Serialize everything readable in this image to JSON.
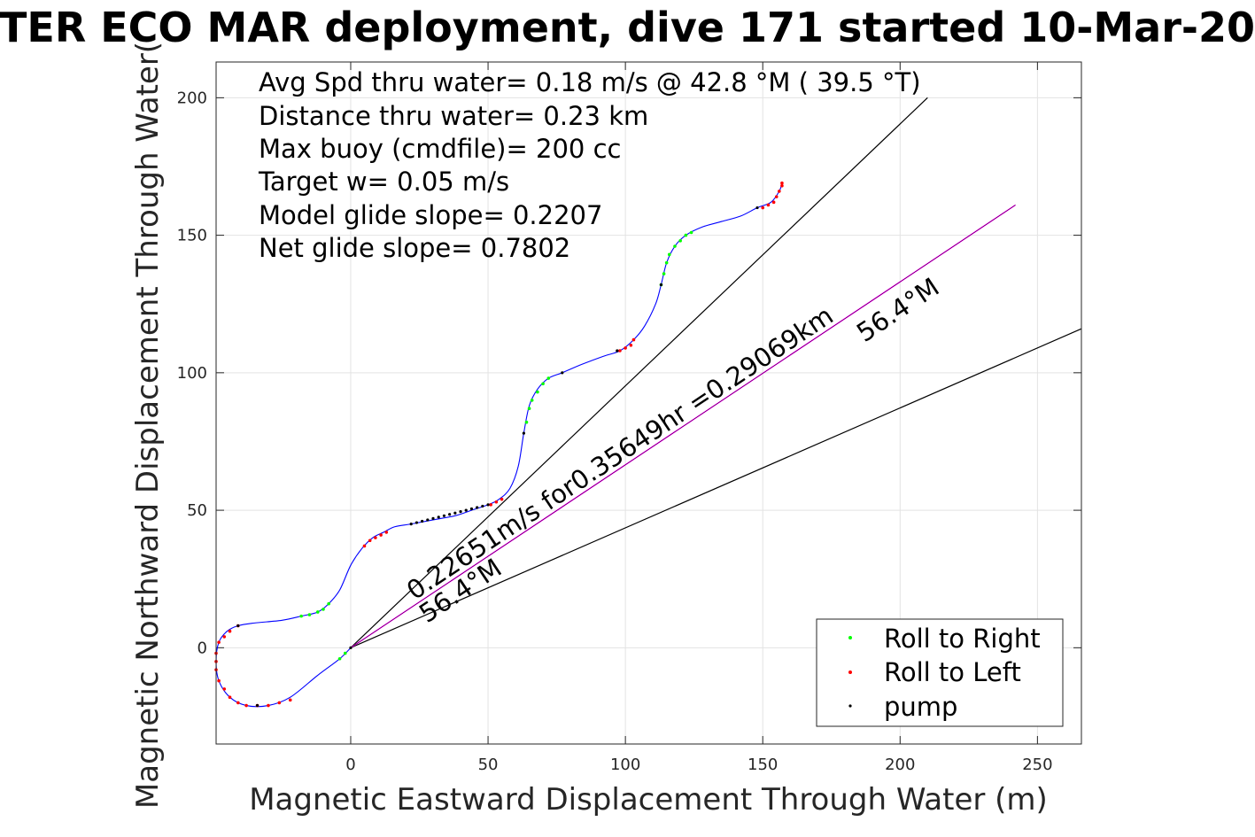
{
  "chart_data": {
    "type": "line",
    "title": "TER ECO MAR deployment, dive 171 started 10-Mar-20",
    "xlabel": "Magnetic Eastward Displacement Through Water (m)",
    "ylabel": "Magnetic Northward Displacement Through Water(",
    "xlim": [
      -49,
      266
    ],
    "ylim": [
      -35,
      213
    ],
    "xticks": [
      0,
      50,
      100,
      150,
      200,
      250
    ],
    "yticks": [
      0,
      50,
      100,
      150,
      200
    ],
    "grid": true,
    "legend_position": "bottom-right",
    "colors": {
      "track": "#0000ff",
      "roll_right": "#00ff00",
      "roll_left": "#ff0000",
      "pump": "#000000",
      "current_line": "#ff00ff",
      "reference_lines": "#000000"
    },
    "stats_lines": [
      "Avg Spd thru water=  0.18 m/s @  42.8 °M ( 39.5 °T)",
      "Distance thru water=  0.23 km",
      "Max buoy (cmdfile)= 200 cc",
      "Target w= 0.05 m/s",
      "Model glide slope= 0.2207",
      "Net glide slope= 0.7802"
    ],
    "current_label": "0.22651m/s for0.35649hr =0.29069km",
    "heading_label_1": "56.4°M",
    "heading_label_2": "56.4°M",
    "legend": [
      {
        "name": "Roll to Right",
        "color": "#00ff00"
      },
      {
        "name": "Roll to Left",
        "color": "#ff0000"
      },
      {
        "name": "pump",
        "color": "#000000"
      }
    ],
    "track": [
      [
        0,
        0
      ],
      [
        -4,
        -4
      ],
      [
        -12,
        -10
      ],
      [
        -22,
        -18
      ],
      [
        -30,
        -21
      ],
      [
        -38,
        -21
      ],
      [
        -44,
        -18
      ],
      [
        -48,
        -12
      ],
      [
        -49,
        -5
      ],
      [
        -48,
        2
      ],
      [
        -45,
        6
      ],
      [
        -41,
        8
      ],
      [
        -35,
        9
      ],
      [
        -25,
        10
      ],
      [
        -18,
        11.5
      ],
      [
        -12,
        13
      ],
      [
        -8,
        16
      ],
      [
        -4,
        21
      ],
      [
        0,
        30
      ],
      [
        4,
        36
      ],
      [
        8,
        40
      ],
      [
        12,
        42
      ],
      [
        16,
        44
      ],
      [
        22,
        45
      ],
      [
        30,
        46.5
      ],
      [
        38,
        48
      ],
      [
        44,
        50
      ],
      [
        50,
        52
      ],
      [
        54,
        54
      ],
      [
        58,
        58
      ],
      [
        61,
        66
      ],
      [
        63,
        78
      ],
      [
        65,
        88
      ],
      [
        68,
        94
      ],
      [
        72,
        98
      ],
      [
        77,
        100
      ],
      [
        84,
        103
      ],
      [
        92,
        106
      ],
      [
        98,
        108
      ],
      [
        103,
        112
      ],
      [
        107,
        117
      ],
      [
        111,
        125
      ],
      [
        113,
        132
      ],
      [
        115,
        140
      ],
      [
        118,
        146
      ],
      [
        122,
        150
      ],
      [
        128,
        153
      ],
      [
        135,
        155
      ],
      [
        142,
        157
      ],
      [
        148,
        160
      ],
      [
        153,
        162
      ],
      [
        156,
        166
      ],
      [
        157,
        169
      ]
    ],
    "roll_right": [
      [
        -4,
        -4
      ],
      [
        -2,
        -2
      ],
      [
        -18,
        11.5
      ],
      [
        -15,
        12
      ],
      [
        -12,
        13
      ],
      [
        -10,
        14
      ],
      [
        -8,
        16
      ],
      [
        64,
        82
      ],
      [
        65,
        87
      ],
      [
        66,
        90
      ],
      [
        68,
        93
      ],
      [
        70,
        96
      ],
      [
        72,
        98
      ],
      [
        113,
        132
      ],
      [
        114,
        136
      ],
      [
        115,
        140
      ],
      [
        116,
        143
      ],
      [
        118,
        146
      ],
      [
        120,
        148
      ],
      [
        122,
        150
      ],
      [
        124,
        151
      ]
    ],
    "roll_left": [
      [
        -44,
        -18
      ],
      [
        -46,
        -15
      ],
      [
        -48,
        -12
      ],
      [
        -49,
        -8
      ],
      [
        -49,
        -5
      ],
      [
        -49,
        -2
      ],
      [
        -48,
        2
      ],
      [
        -46,
        4
      ],
      [
        -44,
        6
      ],
      [
        -41,
        8
      ],
      [
        -30,
        -21
      ],
      [
        -34,
        -21
      ],
      [
        -38,
        -21
      ],
      [
        -41,
        -20
      ],
      [
        -26,
        -20
      ],
      [
        -22,
        -19
      ],
      [
        5,
        37
      ],
      [
        7,
        39
      ],
      [
        9,
        40
      ],
      [
        11,
        41
      ],
      [
        13,
        42
      ],
      [
        51,
        52
      ],
      [
        53,
        53
      ],
      [
        55,
        54
      ],
      [
        98,
        108
      ],
      [
        100,
        109
      ],
      [
        102,
        110
      ],
      [
        103,
        112
      ],
      [
        150,
        160
      ],
      [
        152,
        161
      ],
      [
        154,
        162
      ],
      [
        155,
        164
      ],
      [
        156,
        166
      ],
      [
        157,
        168
      ],
      [
        157,
        169
      ]
    ],
    "pump": [
      [
        22,
        45
      ],
      [
        24,
        45.5
      ],
      [
        26,
        46
      ],
      [
        28,
        46.5
      ],
      [
        30,
        47
      ],
      [
        32,
        47.5
      ],
      [
        34,
        48
      ],
      [
        36,
        48.5
      ],
      [
        38,
        49
      ],
      [
        40,
        49.5
      ],
      [
        42,
        50
      ],
      [
        44,
        50.5
      ],
      [
        46,
        51
      ],
      [
        48,
        51.5
      ],
      [
        50,
        52
      ],
      [
        63,
        78
      ],
      [
        77,
        100
      ],
      [
        97,
        108
      ],
      [
        113,
        132
      ],
      [
        148,
        160
      ],
      [
        -41,
        8
      ],
      [
        -34,
        -21
      ],
      [
        0,
        0
      ]
    ],
    "current_line": [
      [
        0,
        0
      ],
      [
        242,
        161
      ]
    ],
    "reference_lines": [
      [
        [
          0,
          0
        ],
        [
          210,
          200
        ]
      ],
      [
        [
          0,
          0
        ],
        [
          266,
          116
        ]
      ]
    ]
  }
}
